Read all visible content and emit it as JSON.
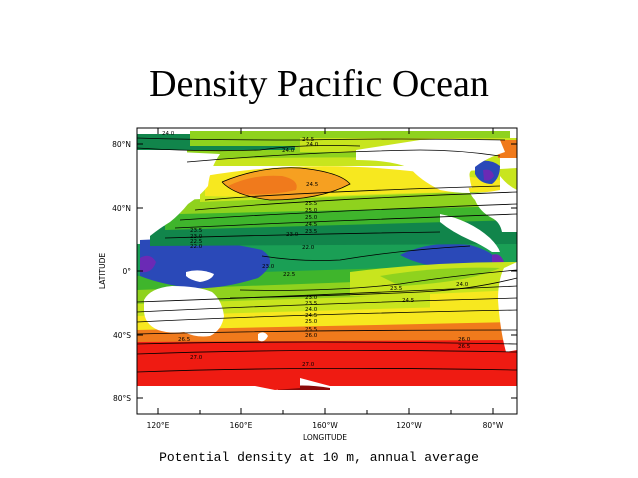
{
  "slide": {
    "title": "Density Pacific Ocean",
    "caption": "Potential density at 10 m, annual average"
  },
  "axes": {
    "xlabel": "LONGITUDE",
    "ylabel": "LATITUDE",
    "xticks": [
      "120°E",
      "160°E",
      "160°W",
      "120°W",
      "80°W"
    ],
    "yticks": [
      "80°N",
      "40°N",
      "0°",
      "40°S",
      "80°S"
    ]
  },
  "contour_labels": [
    "24.0",
    "24.5",
    "24.0",
    "24.0",
    "24.5",
    "25.5",
    "25.0",
    "25.0",
    "24.5",
    "23.5",
    "23.5",
    "23.0",
    "22.5",
    "23.0",
    "22.0",
    "22.0",
    "23.0",
    "22.5",
    "24.0",
    "23.5",
    "24.5",
    "23.0",
    "23.5",
    "24.0",
    "24.5",
    "25.0",
    "25.5",
    "26.0",
    "26.0",
    "26.5",
    "26.5",
    "27.0",
    "27.0"
  ],
  "colors": {
    "land": "#ffffff",
    "deep_red": "#8b0a0a",
    "red": "#ef1b12",
    "orange": "#f07a1c",
    "light_orange": "#f6a021",
    "yellow": "#f7e81f",
    "yellow_green": "#c8e51e",
    "light_green": "#8fd21e",
    "green": "#3fb52c",
    "teal_green": "#1a9f55",
    "dark_green": "#11854b",
    "blue": "#2a49b8",
    "purple": "#6b2ab5"
  }
}
